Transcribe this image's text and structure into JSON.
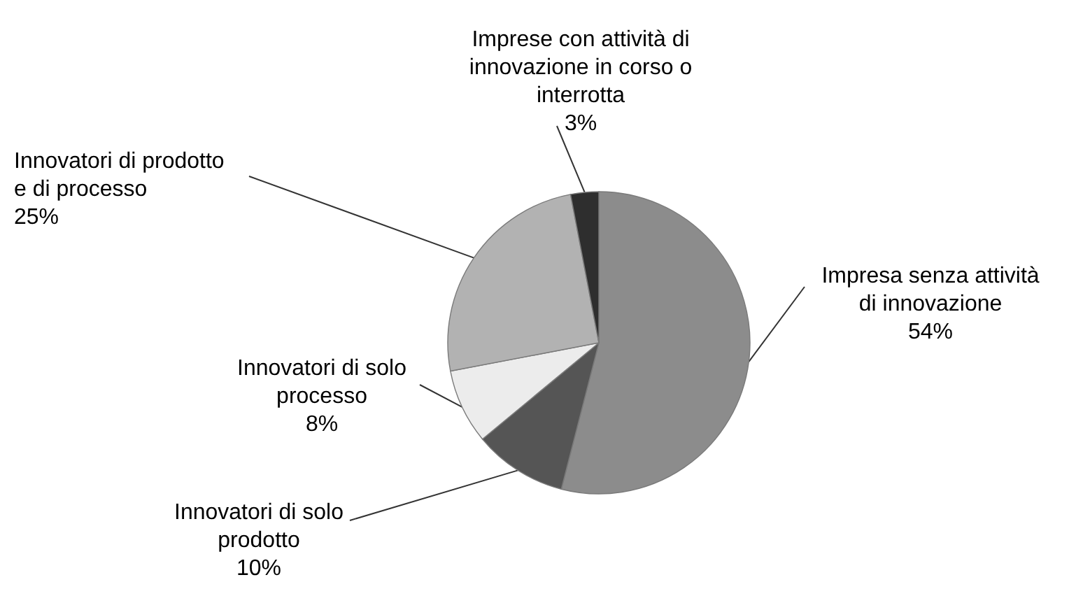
{
  "chart_data": {
    "type": "pie",
    "categories": [
      "Impresa senza attività di innovazione",
      "Innovatori di solo prodotto",
      "Innovatori di solo processo",
      "Innovatori di prodotto e di processo",
      "Imprese con attività di innovazione in corso o interrotta"
    ],
    "values": [
      54,
      10,
      8,
      25,
      3
    ],
    "value_labels": [
      "54%",
      "10%",
      "8%",
      "25%",
      "3%"
    ],
    "colors": [
      "#8c8c8c",
      "#555555",
      "#ececec",
      "#b2b2b2",
      "#2e2e2e"
    ]
  }
}
